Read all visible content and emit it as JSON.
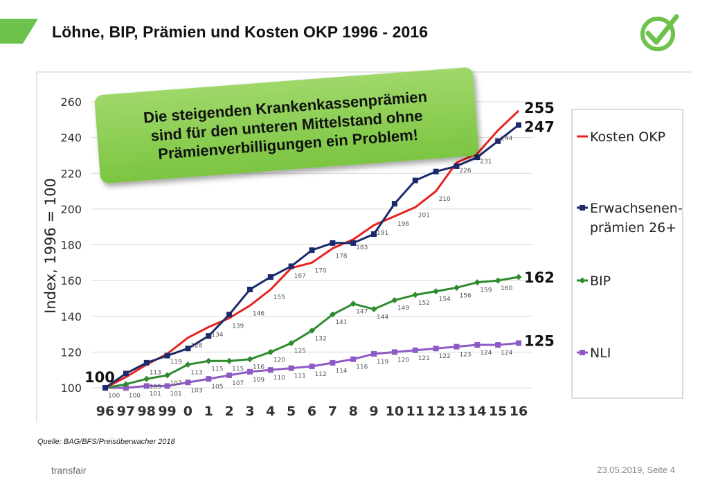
{
  "title": "Löhne, BIP, Prämien und Kosten OKP 1996 - 2016",
  "callout": {
    "line1": "Die steigenden Krankenkassenprämien",
    "line2": "sind für den unteren Mittelstand ohne",
    "line3": "Prämienverbilligungen ein Problem!"
  },
  "source": "Quelle: BAG/BFS/Preisüberwacher 2018",
  "footer": {
    "brand": "transfair",
    "date_page": "23.05.2019, Seite 4"
  },
  "colors": {
    "accent": "#6cc24a",
    "kosten": "#e8231f",
    "praemien": "#1b2a6b",
    "bip": "#2e8b2e",
    "nli": "#8e5ac4"
  },
  "chart_data": {
    "type": "line",
    "title": "",
    "xlabel": "",
    "ylabel": "Index, 1996 = 100",
    "ylim": [
      100,
      260
    ],
    "yticks": [
      100,
      120,
      140,
      160,
      180,
      200,
      220,
      240,
      260
    ],
    "grid": true,
    "legend": "right",
    "x": [
      "96",
      "97",
      "98",
      "99",
      "0",
      "1",
      "2",
      "3",
      "4",
      "5",
      "6",
      "7",
      "8",
      "9",
      "10",
      "11",
      "12",
      "13",
      "14",
      "15",
      "16"
    ],
    "series": [
      {
        "name": "Kosten OKP",
        "color": "#e8231f",
        "marker": "none",
        "values": [
          100,
          106,
          113,
          119,
          128,
          134,
          139,
          146,
          155,
          167,
          170,
          178,
          183,
          191,
          196,
          201,
          210,
          226,
          231,
          244,
          255
        ],
        "labels": [
          "",
          "",
          "113",
          "119",
          "128",
          "134",
          "139",
          "146",
          "155",
          "167",
          "170",
          "178",
          "183",
          "191",
          "196",
          "201",
          "210",
          "226",
          "231",
          "244",
          ""
        ]
      },
      {
        "name": "Erwachsenen-prämien 26+",
        "color": "#1b2a6b",
        "marker": "square",
        "values": [
          100,
          108,
          114,
          118,
          122,
          129,
          141,
          155,
          162,
          168,
          177,
          181,
          181,
          186,
          203,
          216,
          221,
          224,
          229,
          238,
          247
        ],
        "labels": [
          "",
          "",
          "",
          "",
          "",
          "",
          "",
          "",
          "",
          "",
          "",
          "",
          "",
          "",
          "",
          "",
          "",
          "",
          "",
          "",
          ""
        ]
      },
      {
        "name": "BIP",
        "color": "#2e8b2e",
        "marker": "diamond",
        "values": [
          100,
          102,
          105,
          107,
          113,
          115,
          115,
          116,
          120,
          125,
          132,
          141,
          147,
          144,
          149,
          152,
          154,
          156,
          159,
          160,
          162
        ],
        "labels": [
          "",
          "",
          "105",
          "107",
          "113",
          "115",
          "115",
          "116",
          "120",
          "125",
          "132",
          "141",
          "147",
          "144",
          "149",
          "152",
          "154",
          "156",
          "159",
          "160",
          ""
        ]
      },
      {
        "name": "NLI",
        "color": "#8e5ac4",
        "marker": "square",
        "values": [
          100,
          100,
          101,
          101,
          103,
          105,
          107,
          109,
          110,
          111,
          112,
          114,
          116,
          119,
          120,
          121,
          122,
          123,
          124,
          124,
          125
        ],
        "labels": [
          "100",
          "100",
          "101",
          "101",
          "103",
          "105",
          "107",
          "109",
          "110",
          "111",
          "112",
          "114",
          "116",
          "119",
          "120",
          "121",
          "122",
          "123",
          "124",
          "124",
          ""
        ]
      }
    ],
    "annotations": {
      "start": "100",
      "end_kosten": "255",
      "end_praemien": "247",
      "end_bip": "162",
      "end_nli": "125"
    },
    "legend_items": [
      {
        "name": "Kosten OKP",
        "lines": [
          "Kosten OKP"
        ]
      },
      {
        "name": "Erwachsenen-prämien 26+",
        "lines": [
          "Erwachsenen-",
          "prämien 26+"
        ]
      },
      {
        "name": "BIP",
        "lines": [
          "BIP"
        ]
      },
      {
        "name": "NLI",
        "lines": [
          "NLI"
        ]
      }
    ]
  }
}
